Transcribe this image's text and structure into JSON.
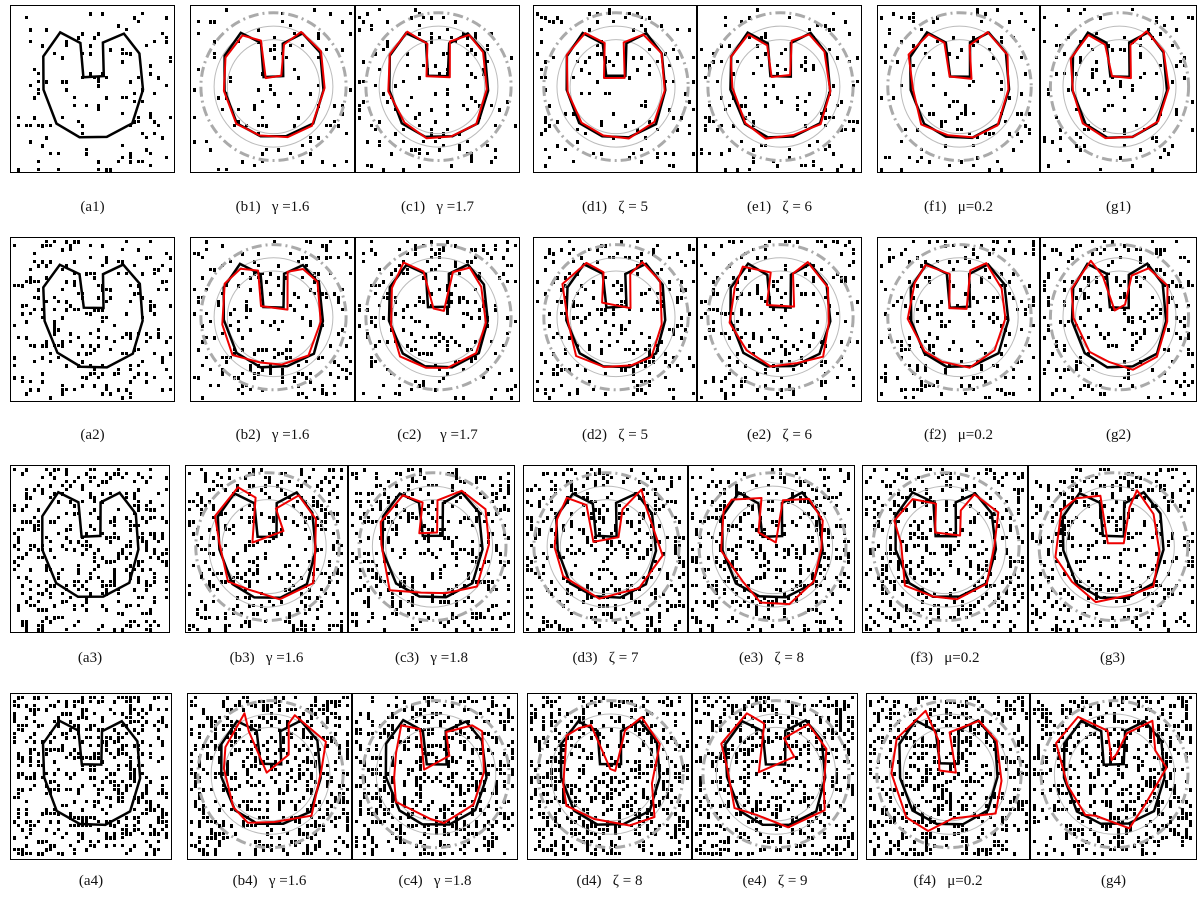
{
  "rows": [
    {
      "panels": [
        {
          "caption": "(a1)"
        },
        {
          "caption": "(b1)   γ =1.6"
        },
        {
          "caption": "(c1)   γ =1.7"
        },
        {
          "caption": "(d1)   ζ = 5"
        },
        {
          "caption": "(e1)   ζ = 6"
        },
        {
          "caption": "(f1)   μ=0.2"
        },
        {
          "caption": "(g1)"
        }
      ]
    },
    {
      "panels": [
        {
          "caption": "(a2)"
        },
        {
          "caption": "(b2)   γ =1.6"
        },
        {
          "caption": "(c2)     γ =1.7"
        },
        {
          "caption": "(d2)   ζ = 5"
        },
        {
          "caption": "(e2)   ζ = 6"
        },
        {
          "caption": "(f2)   μ=0.2"
        },
        {
          "caption": "(g2)"
        }
      ]
    },
    {
      "panels": [
        {
          "caption": "(a3)"
        },
        {
          "caption": "(b3)   γ =1.6"
        },
        {
          "caption": "(c3)   γ =1.8"
        },
        {
          "caption": "(d3)   ζ = 7"
        },
        {
          "caption": "(e3)   ζ = 8"
        },
        {
          "caption": "(f3)   μ=0.2"
        },
        {
          "caption": "(g3)"
        }
      ]
    },
    {
      "panels": [
        {
          "caption": "(a4)"
        },
        {
          "caption": "(b4)   γ =1.6"
        },
        {
          "caption": "(c4)   γ =1.8"
        },
        {
          "caption": "(d4)   ζ = 8"
        },
        {
          "caption": "(e4)   ζ = 9"
        },
        {
          "caption": "(f4)   μ=0.2"
        },
        {
          "caption": "(g4)"
        }
      ]
    }
  ]
}
